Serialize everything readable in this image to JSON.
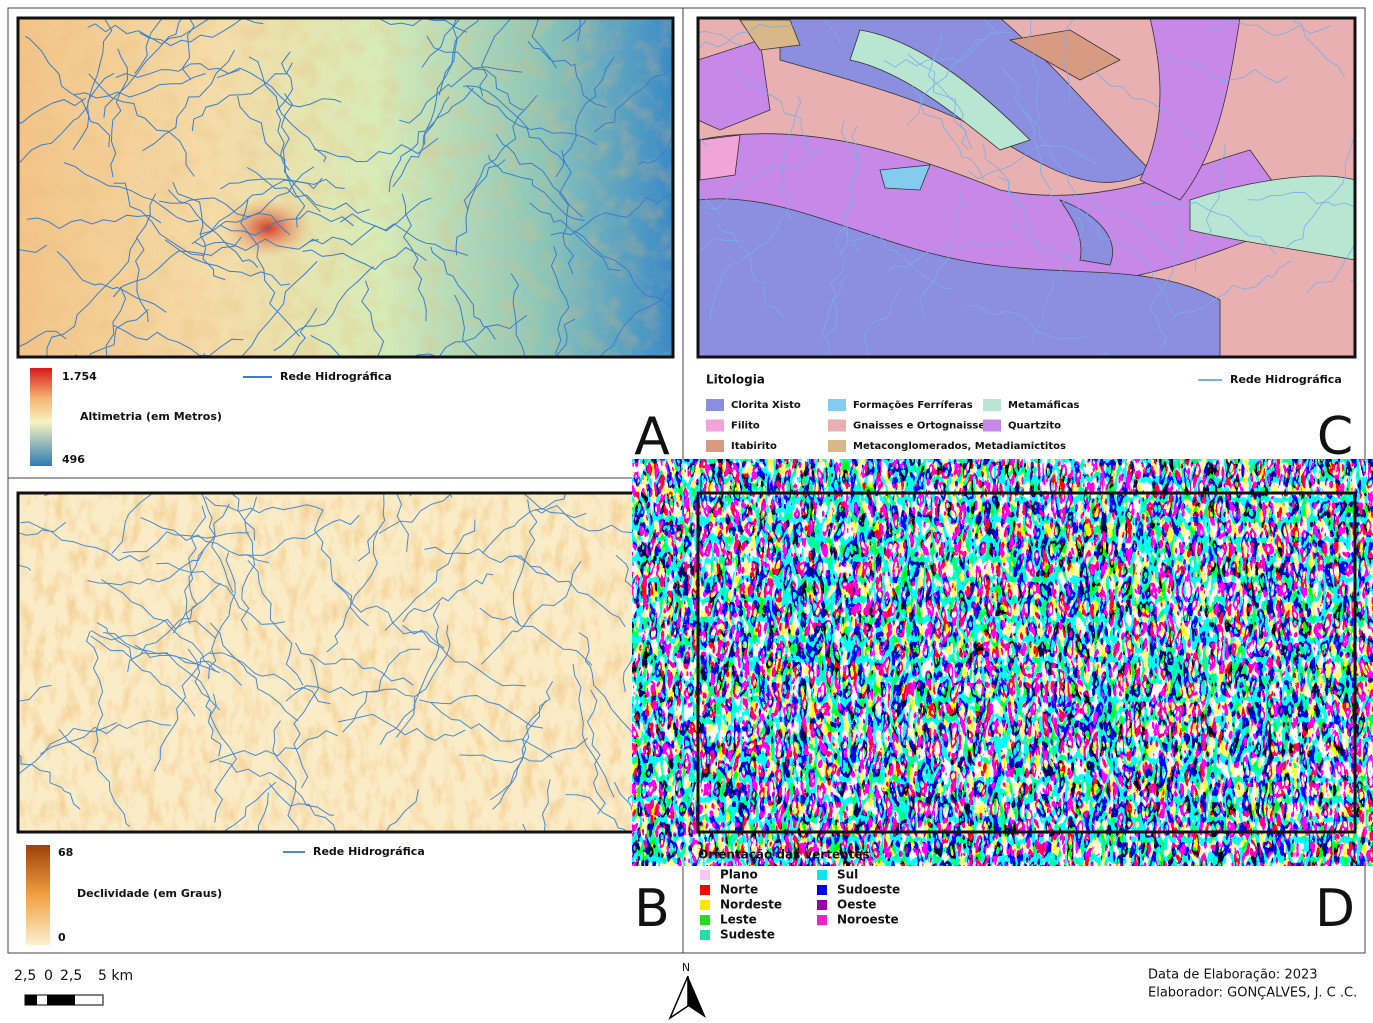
{
  "panels": {
    "a": {
      "letter": "A",
      "ramp_max": "1.754",
      "ramp_min": "496",
      "ramp_title": "Altimetria (em Metros)",
      "line": "Rede Hidrográfica"
    },
    "b": {
      "letter": "B",
      "ramp_max": "68",
      "ramp_min": "0",
      "ramp_title": "Declividade (em Graus)",
      "line": "Rede Hidrográfica"
    },
    "c": {
      "letter": "C",
      "legend_title": "Litologia",
      "line": "Rede Hidrográfica",
      "columns": [
        [
          {
            "name": "Clorita Xisto",
            "color": "#8c8ee0"
          },
          {
            "name": "Filito",
            "color": "#f0a4d8"
          },
          {
            "name": "Itabirito",
            "color": "#d89a80"
          }
        ],
        [
          {
            "name": "Formações Ferríferas",
            "color": "#84cbf0"
          },
          {
            "name": "Gnaisses e Ortognaisses",
            "color": "#e8b0b0"
          },
          {
            "name": "Metaconglomerados, Metadiamictitos",
            "color": "#d8b888"
          }
        ],
        [
          {
            "name": "Metamáficas",
            "color": "#b8e6d2"
          },
          {
            "name": "Quartzito",
            "color": "#c888e8"
          }
        ]
      ]
    },
    "d": {
      "letter": "D",
      "legend_title": "Orientação das vertentes",
      "columns": [
        [
          {
            "name": "Plano",
            "color": "#f8c8f0"
          },
          {
            "name": "Norte",
            "color": "#ff0000"
          },
          {
            "name": "Nordeste",
            "color": "#ffe600"
          },
          {
            "name": "Leste",
            "color": "#22dd22"
          },
          {
            "name": "Sudeste",
            "color": "#22e0a0"
          }
        ],
        [
          {
            "name": "Sul",
            "color": "#00e8f0"
          },
          {
            "name": "Sudoeste",
            "color": "#0000ee"
          },
          {
            "name": "Oeste",
            "color": "#9900aa"
          },
          {
            "name": "Noroeste",
            "color": "#ee22cc"
          }
        ]
      ]
    }
  },
  "scale_bar": [
    "2,5",
    "0",
    "2,5",
    "5 km"
  ],
  "north": "N",
  "credits": [
    "Data de Elaboração: 2023",
    "Elaborador: GONÇALVES, J. C .C."
  ]
}
